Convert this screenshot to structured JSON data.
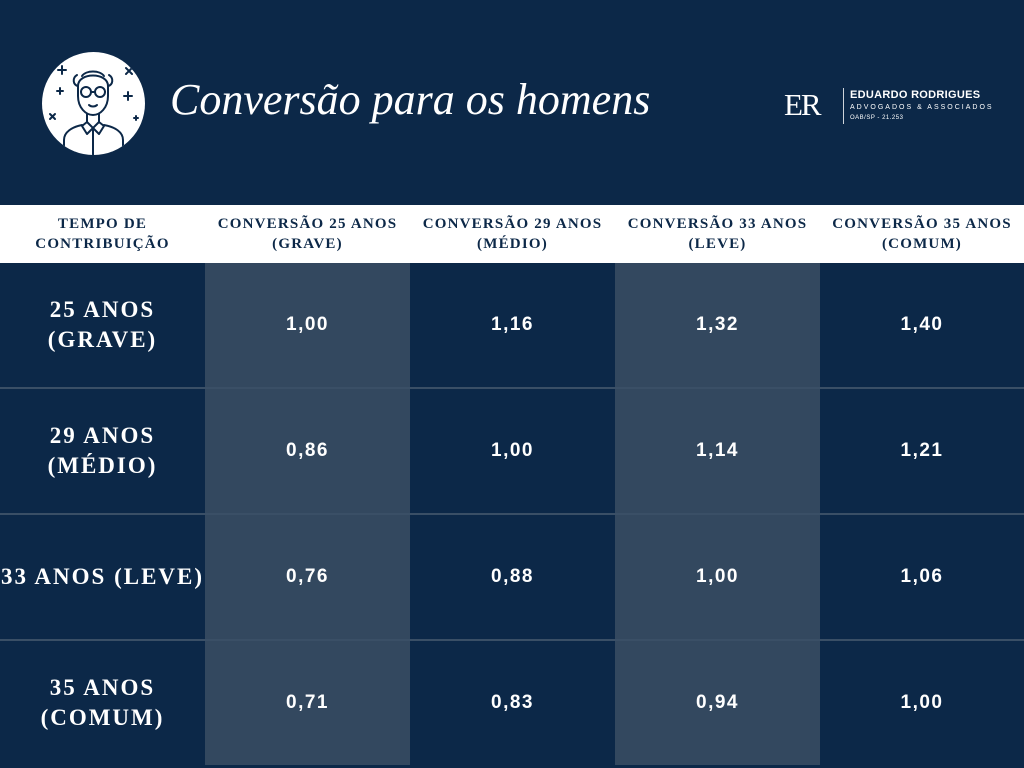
{
  "header": {
    "title": "Conversão para os homens",
    "logo": {
      "mark": "ER",
      "name": "EDUARDO RODRIGUES",
      "subtitle": "ADVOGADOS & ASSOCIADOS",
      "oab": "OAB/SP - 21.253"
    },
    "avatar_icon": "elderly-man-with-glasses-icon",
    "colors": {
      "background": "#0c2848",
      "cell_light": "#33485f",
      "header_row": "#ffffff"
    }
  },
  "table": {
    "headers": [
      "TEMPO DE CONTRIBUIÇÃO",
      "CONVERSÃO 25 ANOS (GRAVE)",
      "CONVERSÃO 29 ANOS (MÉDIO)",
      "CONVERSÃO 33 ANOS (LEVE)",
      "CONVERSÃO 35 ANOS (COMUM)"
    ],
    "rows": [
      {
        "label": "25 ANOS (GRAVE)",
        "values": [
          "1,00",
          "1,16",
          "1,32",
          "1,40"
        ]
      },
      {
        "label": "29 ANOS (MÉDIO)",
        "values": [
          "0,86",
          "1,00",
          "1,14",
          "1,21"
        ]
      },
      {
        "label": "33 ANOS (LEVE)",
        "values": [
          "0,76",
          "0,88",
          "1,00",
          "1,06"
        ]
      },
      {
        "label": "35 ANOS (COMUM)",
        "values": [
          "0,71",
          "0,83",
          "0,94",
          "1,00"
        ]
      }
    ]
  }
}
